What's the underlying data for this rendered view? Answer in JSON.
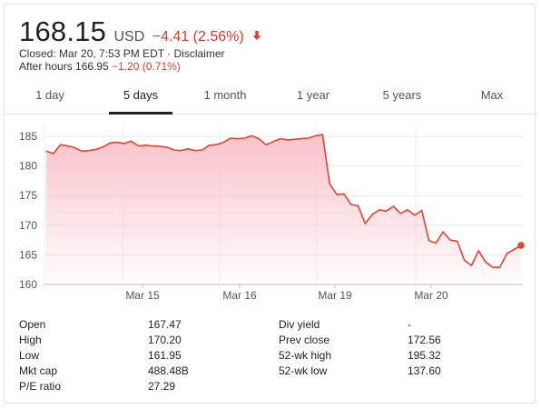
{
  "quote": {
    "price": "168.15",
    "currency": "USD",
    "change": "−4.41 (2.56%)",
    "change_direction": "down",
    "closed_text": "Closed: Mar 20, 7:53 PM EDT · Disclaimer",
    "after_hours_label": "After hours 166.95",
    "after_hours_change": "−1.20 (0.71%)",
    "negative_color": "#d23f31"
  },
  "tabs": [
    {
      "label": "1 day",
      "active": false
    },
    {
      "label": "5 days",
      "active": true
    },
    {
      "label": "1 month",
      "active": false
    },
    {
      "label": "1 year",
      "active": false
    },
    {
      "label": "5 years",
      "active": false
    },
    {
      "label": "Max",
      "active": false
    }
  ],
  "chart_data": {
    "type": "area",
    "x_tick_labels": [
      "Mar 15",
      "Mar 16",
      "Mar 19",
      "Mar 20"
    ],
    "y_tick_labels": [
      "160",
      "165",
      "170",
      "175",
      "180",
      "185"
    ],
    "ylim": [
      160,
      187
    ],
    "line_color": "#e0442c",
    "fill_color": "#f9c0c8",
    "values": [
      182.5,
      182.1,
      183.6,
      183.4,
      183.1,
      182.5,
      182.6,
      182.8,
      183.2,
      183.9,
      184.0,
      183.8,
      184.2,
      183.4,
      183.5,
      183.4,
      183.3,
      183.2,
      182.7,
      182.6,
      182.9,
      182.6,
      182.7,
      183.5,
      183.6,
      184.0,
      184.7,
      184.6,
      184.7,
      185.1,
      184.6,
      183.6,
      184.1,
      184.6,
      184.4,
      184.5,
      184.6,
      184.7,
      185.1,
      185.3,
      177.0,
      175.2,
      175.3,
      173.5,
      173.3,
      170.3,
      171.8,
      172.6,
      172.4,
      173.2,
      172.0,
      172.6,
      171.7,
      172.5,
      167.4,
      167.0,
      168.9,
      167.5,
      167.3,
      164.1,
      163.2,
      165.7,
      163.8,
      162.9,
      162.9,
      165.2,
      165.9,
      166.6
    ],
    "grid": true,
    "legend": "none"
  },
  "stats": [
    {
      "label": "Open",
      "value": "167.47"
    },
    {
      "label": "High",
      "value": "170.20"
    },
    {
      "label": "Low",
      "value": "161.95"
    },
    {
      "label": "Mkt cap",
      "value": "488.48B"
    },
    {
      "label": "P/E ratio",
      "value": "27.29"
    },
    {
      "label": "Div yield",
      "value": "-"
    },
    {
      "label": "Prev close",
      "value": "172.56"
    },
    {
      "label": "52-wk high",
      "value": "195.32"
    },
    {
      "label": "52-wk low",
      "value": "137.60"
    }
  ]
}
